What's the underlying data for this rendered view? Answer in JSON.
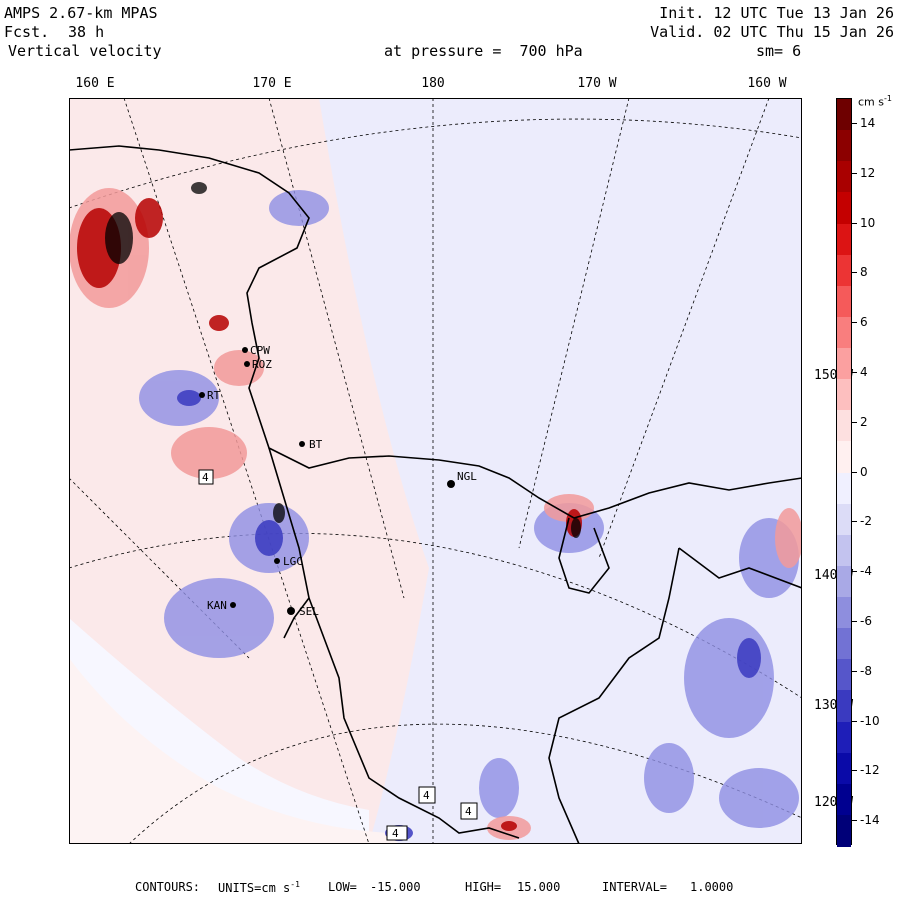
{
  "header": {
    "model": "AMPS 2.67-km MPAS",
    "fcst_label": "Fcst.",
    "fcst_value": "38 h",
    "field": "Vertical velocity",
    "init": "Init. 12 UTC Tue 13 Jan 26",
    "valid": "Valid. 02 UTC Thu 15 Jan 26",
    "level": "at pressure =  700 hPa",
    "smoothing": "sm= 6"
  },
  "lon_labels": [
    "160 E",
    "170 E",
    "180",
    "170 W",
    "160 W"
  ],
  "lat_labels": [
    "150 W",
    "140 W",
    "130 W",
    "120 W"
  ],
  "colorbar": {
    "unit": "cm s",
    "unit_exp": "-1",
    "labels": [
      "14",
      "12",
      "10",
      "8",
      "6",
      "4",
      "2",
      "0",
      "-2",
      "-4",
      "-6",
      "-8",
      "-10",
      "-12",
      "-14"
    ],
    "colors": [
      "#6e0000",
      "#8c0000",
      "#a90000",
      "#c40000",
      "#dc1414",
      "#ec3434",
      "#f55a5a",
      "#f97e7e",
      "#fba0a0",
      "#fdbfbf",
      "#fde0e0",
      "#fff0f0",
      "#f0f0ff",
      "#dcdcf7",
      "#c3c3ef",
      "#a9a9e6",
      "#8e8ede",
      "#7272d4",
      "#5656ca",
      "#3a3ac0",
      "#1e1eb8",
      "#0a0aa8",
      "#000090",
      "#000078"
    ]
  },
  "stations": [
    {
      "code": "CPW"
    },
    {
      "code": "ROZ"
    },
    {
      "code": "RT"
    },
    {
      "code": "BT"
    },
    {
      "code": "NGL"
    },
    {
      "code": "LGC"
    },
    {
      "code": "KAN"
    },
    {
      "code": "SEL"
    }
  ],
  "contour_boxes": [
    "4",
    "4",
    "4",
    "4"
  ],
  "footer": {
    "contours_label": "CONTOURS:",
    "units_label": "UNITS=cm s",
    "units_exp": "-1",
    "low_label": "LOW=",
    "low": "-15.000",
    "high_label": "HIGH=",
    "high": "15.000",
    "interval_label": "INTERVAL=",
    "interval": "1.0000"
  },
  "colors": {
    "background": "#ffffff",
    "positive_light": "#fde4e4",
    "negative_light": "#e6e6fb",
    "coast": "#000000"
  }
}
